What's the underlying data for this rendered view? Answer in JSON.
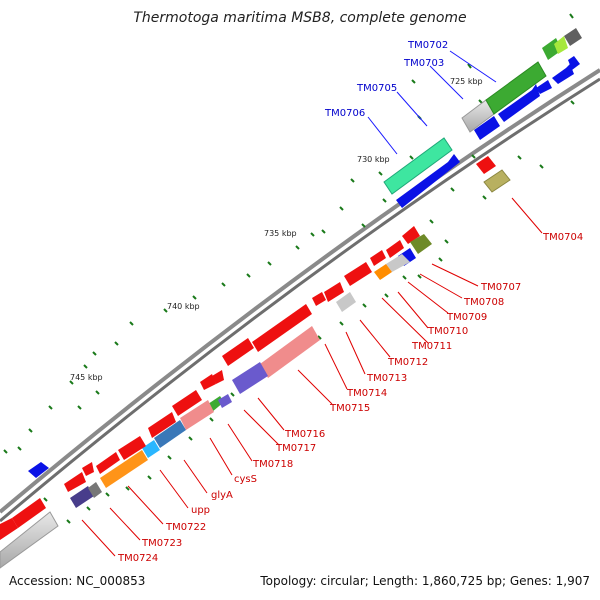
{
  "title": "Thermotoga maritima MSB8, complete genome",
  "footer": {
    "accession": "Accession: NC_000853",
    "summary": "Topology: circular; Length: 1,860,725 bp; Genes: 1,907"
  },
  "colors": {
    "forward_label": "#0000cc",
    "reverse_label": "#cc0000",
    "backbone": "#8c8c8c",
    "tick": "#1a7a1a",
    "blue_feature": "#0a12e6",
    "red_feature": "#f00000"
  },
  "scale_labels": [
    "725 kbp",
    "730 kbp",
    "735 kbp",
    "740 kbp",
    "745 kbp"
  ],
  "forward_labels": [
    "TM0702",
    "TM0703",
    "TM0705",
    "TM0706"
  ],
  "reverse_labels": [
    "TM0704",
    "TM0707",
    "TM0708",
    "TM0709",
    "TM0710",
    "TM0711",
    "TM0712",
    "TM0713",
    "TM0714",
    "TM0715",
    "TM0716",
    "TM0717",
    "TM0718",
    "cysS",
    "glyA",
    "upp",
    "TM0722",
    "TM0723",
    "TM0724"
  ]
}
